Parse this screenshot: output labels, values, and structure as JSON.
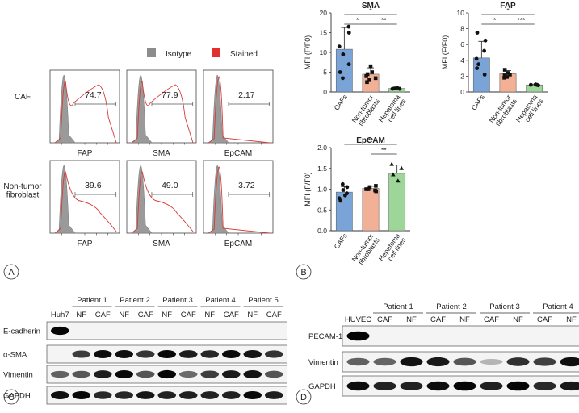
{
  "panel_letters": [
    "A",
    "B",
    "C",
    "D"
  ],
  "panelA": {
    "legend": [
      {
        "label": "Isotype",
        "color": "#8c8c8c"
      },
      {
        "label": "Stained",
        "color": "#e03030"
      }
    ],
    "row_labels": [
      "CAF",
      "Non-tumor\nfibroblast"
    ],
    "columns": [
      "FAP",
      "SMA",
      "EpCAM"
    ],
    "values": [
      [
        "74.7",
        "77.9",
        "2.17"
      ],
      [
        "39.6",
        "49.0",
        "3.72"
      ]
    ]
  },
  "chart_data": [
    {
      "type": "bar",
      "title": "SMA",
      "ylabel": "MFI (F/F0)",
      "categories": [
        "CAFs",
        "Non-tumor\nfibroblasts",
        "Hepatoma\ncell lines"
      ],
      "values": [
        10.8,
        4.5,
        0.9
      ],
      "errors": [
        5.5,
        1.6,
        0.3
      ],
      "points": [
        [
          16.5,
          15,
          11.5,
          9.5,
          7,
          5,
          3.5
        ],
        [
          6.5,
          5,
          4.5,
          4,
          3.5,
          3,
          2.5
        ],
        [
          1.1,
          0.9,
          0.8,
          0.8
        ]
      ],
      "ylim": [
        0,
        20
      ],
      "yticks": [
        0,
        5,
        10,
        15,
        20
      ],
      "colors": [
        "#7aa3d8",
        "#f2b096",
        "#9ed69a"
      ],
      "significance": [
        "*",
        "*",
        "**"
      ]
    },
    {
      "type": "bar",
      "title": "FAP",
      "ylabel": "MFI (F/F0)",
      "categories": [
        "CAFs",
        "Non-tumor\nfibroblasts",
        "Hepatoma\ncell lines"
      ],
      "values": [
        4.3,
        2.3,
        0.9
      ],
      "errors": [
        2.1,
        0.4,
        0.1
      ],
      "points": [
        [
          7.5,
          6.5,
          5.2,
          4.2,
          3.5,
          3.0,
          2.2
        ],
        [
          2.8,
          2.4,
          2.2,
          2.1,
          1.9,
          1.8
        ],
        [
          0.95,
          0.9,
          0.9,
          0.85
        ]
      ],
      "ylim": [
        0,
        10
      ],
      "yticks": [
        0,
        2,
        4,
        6,
        8,
        10
      ],
      "colors": [
        "#7aa3d8",
        "#f2b096",
        "#9ed69a"
      ],
      "significance": [
        "*",
        "*",
        "***"
      ]
    },
    {
      "type": "bar",
      "title": "EpCAM",
      "ylabel": "MFI (F/F0)",
      "categories": [
        "CAFs",
        "Non-tumor\nfibroblasts",
        "Hepatoma\ncell lines"
      ],
      "values": [
        0.93,
        1.02,
        1.38
      ],
      "errors": [
        0.13,
        0.05,
        0.2
      ],
      "points": [
        [
          1.12,
          1.05,
          0.98,
          0.9,
          0.85,
          0.78,
          0.72
        ],
        [
          1.08,
          1.05,
          1.0,
          1.0,
          0.97,
          0.95
        ],
        [
          1.6,
          1.5,
          1.35,
          1.2
        ]
      ],
      "ylim": [
        0,
        2.0
      ],
      "yticks": [
        0,
        0.5,
        1.0,
        1.5,
        2.0
      ],
      "colors": [
        "#7aa3d8",
        "#f2b096",
        "#9ed69a"
      ],
      "significance": [
        "**",
        "**"
      ]
    }
  ],
  "panelC": {
    "patients": [
      "Patient 1",
      "Patient 2",
      "Patient 3",
      "Patient 4",
      "Patient 5"
    ],
    "lanes": [
      "Huh7",
      "NF",
      "CAF",
      "NF",
      "CAF",
      "NF",
      "CAF",
      "NF",
      "CAF",
      "NF",
      "CAF"
    ],
    "rows": [
      "E-cadherin",
      "α-SMA",
      "Vimentin",
      "GAPDH"
    ]
  },
  "panelD": {
    "patients": [
      "Patient 1",
      "Patient 2",
      "Patient 3",
      "Patient 4"
    ],
    "lanes": [
      "HUVEC",
      "CAF",
      "NF",
      "CAF",
      "NF",
      "CAF",
      "NF",
      "CAF",
      "NF"
    ],
    "rows": [
      "PECAM-1",
      "Vimentin",
      "GAPDH"
    ]
  }
}
